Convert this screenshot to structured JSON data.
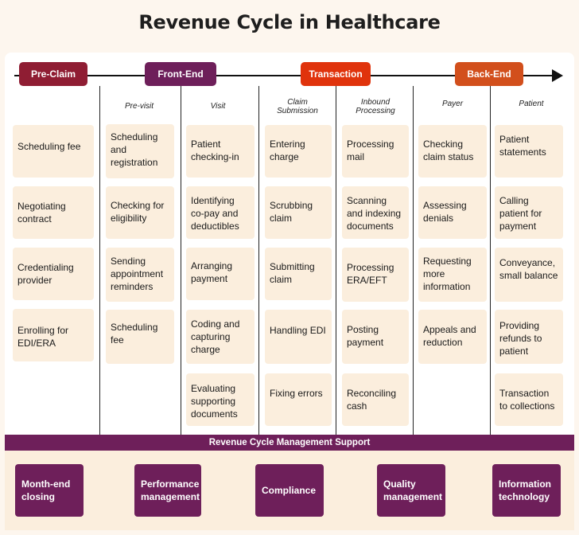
{
  "title": "Revenue Cycle in Healthcare",
  "colors": {
    "pre_claim": "#8f1d33",
    "front_end": "#6e1f5a",
    "transaction": "#e0330c",
    "back_end": "#d24f1c",
    "box_fill": "#fbeedd",
    "support": "#6e1f5a"
  },
  "phases": {
    "pre_claim": "Pre-Claim",
    "front_end": "Front-End",
    "transaction": "Transaction",
    "back_end": "Back-End"
  },
  "columns": {
    "pre_visit": "Pre-visit",
    "visit": "Visit",
    "claim_submission": "Claim Submission",
    "inbound_processing": "Inbound Processing",
    "payer": "Payer",
    "patient": "Patient"
  },
  "pre_claim_items": [
    "Scheduling fee",
    "Negotiating contract",
    "Credentialing provider",
    "Enrolling for EDI/ERA"
  ],
  "pre_visit_items": [
    "Scheduling and registration",
    "Checking for eligibility",
    "Sending appointment reminders",
    "Scheduling fee"
  ],
  "visit_items": [
    "Patient checking-in",
    "Identifying co-pay and deductibles",
    "Arranging payment",
    "Coding and capturing charge",
    "Evaluating supporting documents"
  ],
  "claim_submission_items": [
    "Entering charge",
    "Scrubbing claim",
    "Submitting claim",
    "Handling EDI",
    "Fixing errors"
  ],
  "inbound_processing_items": [
    "Processing mail",
    "Scanning and indexing documents",
    "Processing ERA/EFT",
    "Posting payment",
    "Reconciling cash"
  ],
  "payer_items": [
    "Checking claim status",
    "Assessing denials",
    "Requesting more information",
    "Appeals and reduction"
  ],
  "patient_items": [
    "Patient statements",
    "Calling patient for payment",
    "Conveyance, small balance",
    "Providing refunds to patient",
    "Transaction to collections"
  ],
  "support_title": "Revenue Cycle Management Support",
  "support_items": [
    "Month-end closing",
    "Performance management",
    "Compliance",
    "Quality management",
    "Information technology"
  ]
}
